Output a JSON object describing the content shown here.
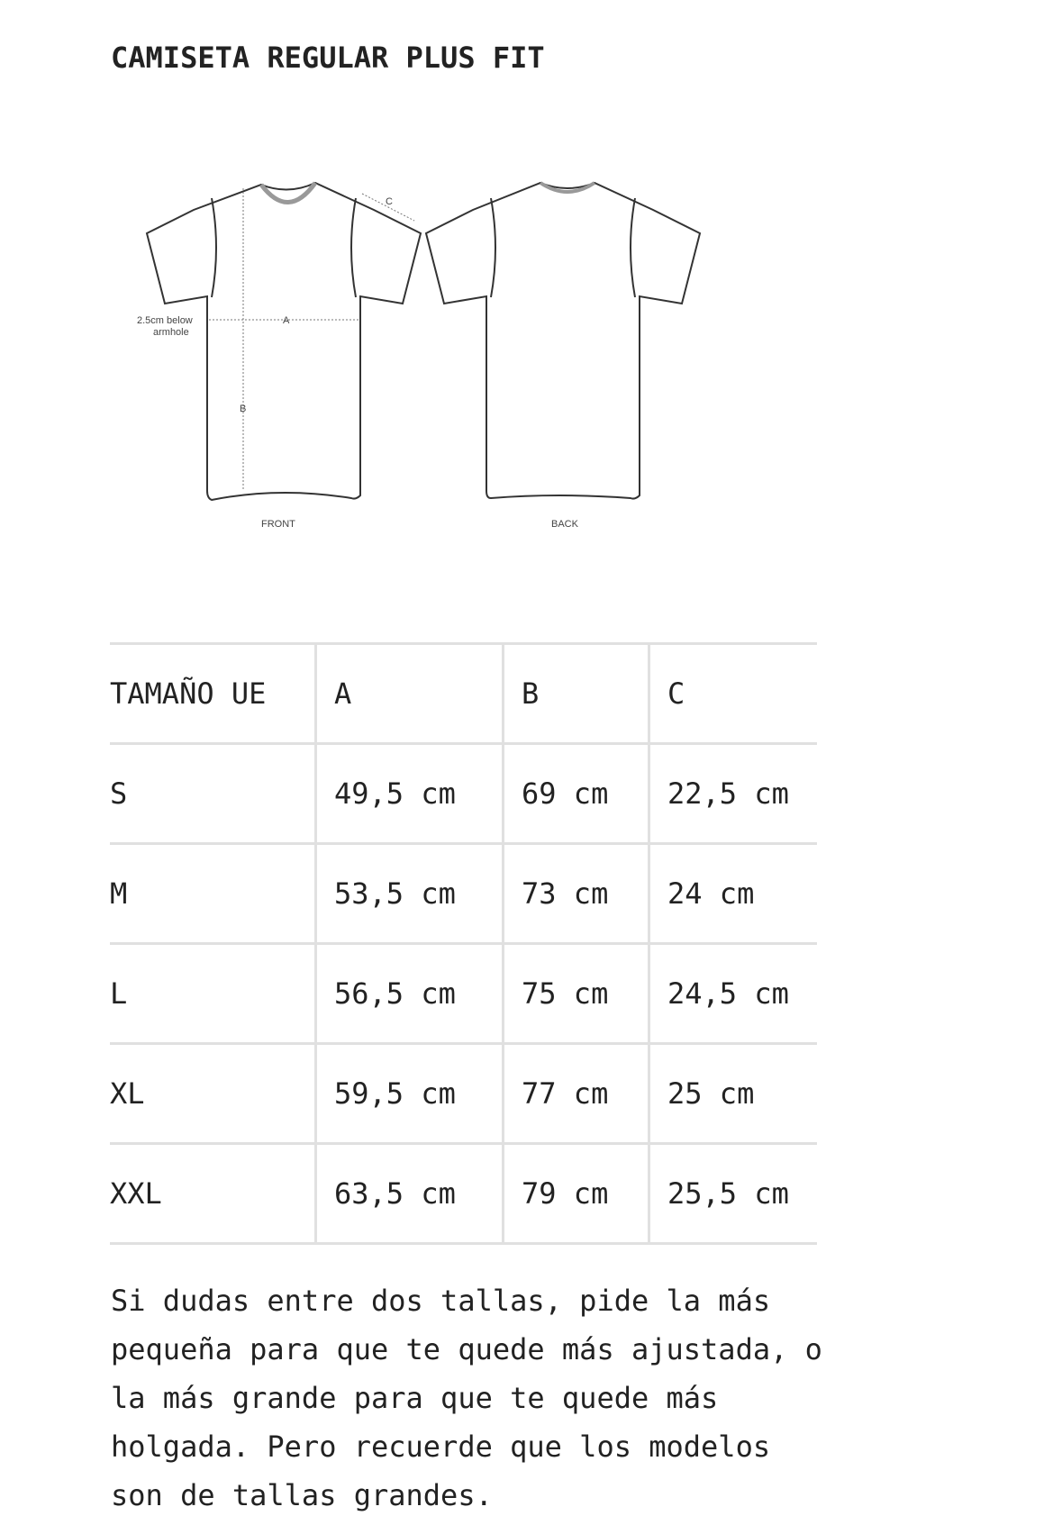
{
  "title": "CAMISETA REGULAR PLUS FIT",
  "diagram": {
    "front_label": "FRONT",
    "back_label": "BACK",
    "measure_note_line1": "2.5cm below",
    "measure_note_line2": "armhole",
    "marker_a": "A",
    "marker_b": "B",
    "marker_c": "C"
  },
  "table": {
    "headers": [
      "TAMAÑO UE",
      "A",
      "B",
      "C"
    ],
    "rows": [
      [
        "S",
        "49,5 cm",
        "69 cm",
        "22,5 cm"
      ],
      [
        "M",
        "53,5 cm",
        "73 cm",
        "24 cm"
      ],
      [
        "L",
        "56,5 cm",
        "75 cm",
        "24,5 cm"
      ],
      [
        "XL",
        "59,5 cm",
        "77 cm",
        "25 cm"
      ],
      [
        "XXL",
        "63,5 cm",
        "79 cm",
        "25,5 cm"
      ]
    ]
  },
  "note": "Si dudas entre dos tallas, pide la más pequeña para que te quede más ajustada, o la más grande para que te quede más holgada. Pero recuerde que los modelos son de tallas grandes."
}
